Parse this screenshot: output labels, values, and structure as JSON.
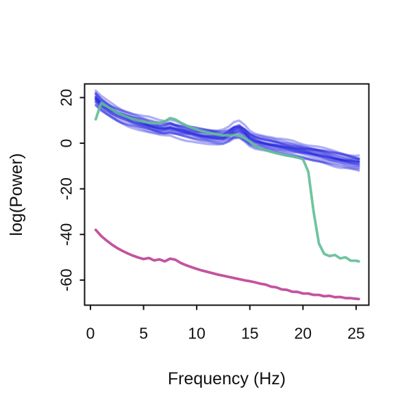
{
  "figure": {
    "background": "#ffffff",
    "axis_color": "#111111"
  },
  "chart_data": {
    "type": "line",
    "title": "",
    "xlabel": "Frequency (Hz)",
    "ylabel": "log(Power)",
    "xlim": [
      -0.55,
      26.2
    ],
    "ylim": [
      -71,
      26
    ],
    "x_ticks": [
      0,
      5,
      10,
      15,
      20,
      25
    ],
    "y_ticks": [
      20,
      0,
      -20,
      -40,
      -60
    ],
    "grid": false,
    "legend": "none",
    "x": [
      0.5,
      1,
      1.5,
      2,
      2.5,
      3,
      3.5,
      4,
      4.5,
      5,
      5.5,
      6,
      6.5,
      7,
      7.5,
      8,
      8.5,
      9,
      9.5,
      10,
      10.5,
      11,
      11.5,
      12,
      12.5,
      13,
      13.5,
      14,
      14.5,
      15,
      15.5,
      16,
      16.5,
      17,
      17.5,
      18,
      18.5,
      19,
      19.5,
      20,
      20.5,
      21,
      21.5,
      22,
      22.5,
      23,
      23.5,
      24,
      24.5,
      25,
      25.25
    ],
    "series": [
      {
        "name": "blue-spectra-bundle",
        "role": "bundle",
        "color": "#2121DE",
        "opacity": 0.36,
        "line_width": 3.3,
        "base_values": [
          20.0,
          17.6,
          15.9,
          14.4,
          13.1,
          12.0,
          11.0,
          10.1,
          9.3,
          8.6,
          8.0,
          7.4,
          6.9,
          6.6,
          6.7,
          6.2,
          5.6,
          5.0,
          4.5,
          4.0,
          3.6,
          3.3,
          3.0,
          2.8,
          2.8,
          3.4,
          4.6,
          5.0,
          3.8,
          2.2,
          1.3,
          0.7,
          0.1,
          -0.4,
          -0.9,
          -1.4,
          -1.9,
          -2.4,
          -2.9,
          -3.4,
          -3.9,
          -4.4,
          -4.9,
          -5.4,
          -5.9,
          -6.4,
          -6.9,
          -7.4,
          -7.8,
          -8.2,
          -8.3
        ],
        "bump_profile": [
          0,
          0,
          0,
          0,
          0,
          0,
          0,
          0,
          0,
          0,
          0,
          0,
          0,
          0.2,
          0.55,
          0.3,
          0.1,
          0,
          0,
          0,
          0,
          0,
          0,
          0,
          0.2,
          0.7,
          1.3,
          1.6,
          1.0,
          0.35,
          0.1,
          0,
          0,
          0,
          0,
          0,
          0,
          0,
          0,
          0,
          0,
          0,
          0,
          0,
          0,
          0,
          0,
          0,
          0,
          0,
          0
        ],
        "wiggle_amplitude": 1.3,
        "members": [
          {
            "offset": -3.4,
            "bump_gain": 0.2,
            "seed": 11
          },
          {
            "offset": -2.7,
            "bump_gain": 1.3,
            "seed": 12
          },
          {
            "offset": -2.1,
            "bump_gain": 0.5,
            "seed": 13
          },
          {
            "offset": -1.6,
            "bump_gain": -0.2,
            "seed": 14
          },
          {
            "offset": -1.2,
            "bump_gain": 0.9,
            "seed": 15
          },
          {
            "offset": -0.9,
            "bump_gain": 0.1,
            "seed": 16
          },
          {
            "offset": -0.6,
            "bump_gain": 1.5,
            "seed": 17
          },
          {
            "offset": -0.35,
            "bump_gain": 0.7,
            "seed": 18
          },
          {
            "offset": -0.15,
            "bump_gain": 0.3,
            "seed": 19
          },
          {
            "offset": 0.05,
            "bump_gain": 1.1,
            "seed": 20
          },
          {
            "offset": 0.25,
            "bump_gain": 0.0,
            "seed": 21
          },
          {
            "offset": 0.5,
            "bump_gain": 0.8,
            "seed": 22
          },
          {
            "offset": 0.8,
            "bump_gain": 1.4,
            "seed": 23
          },
          {
            "offset": 1.1,
            "bump_gain": 0.4,
            "seed": 24
          },
          {
            "offset": 1.45,
            "bump_gain": 1.0,
            "seed": 25
          },
          {
            "offset": 1.85,
            "bump_gain": 0.2,
            "seed": 26
          },
          {
            "offset": 2.3,
            "bump_gain": 0.6,
            "seed": 27
          },
          {
            "offset": 2.9,
            "bump_gain": 1.2,
            "seed": 28
          }
        ]
      },
      {
        "name": "green-spectrum",
        "role": "single",
        "color": "#60BE96",
        "opacity": 0.9,
        "line_width": 3.8,
        "values": [
          10.5,
          17.5,
          16.2,
          14.8,
          13.5,
          12.4,
          11.5,
          10.7,
          10.0,
          9.4,
          9.0,
          8.7,
          8.9,
          9.6,
          11.0,
          10.4,
          9.0,
          7.8,
          6.8,
          6.0,
          5.3,
          4.7,
          4.2,
          3.8,
          3.5,
          3.4,
          3.6,
          3.2,
          2.2,
          0.8,
          -1.2,
          -2.2,
          -3.1,
          -3.8,
          -4.4,
          -4.9,
          -5.4,
          -5.8,
          -6.3,
          -7.0,
          -12.5,
          -30.0,
          -44.0,
          -48.5,
          -49.5,
          -49.0,
          -50.5,
          -50.0,
          -51.5,
          -51.5,
          -51.8
        ]
      },
      {
        "name": "magenta-spectrum",
        "role": "single",
        "color": "#C3539F",
        "opacity": 1,
        "line_width": 3.8,
        "values": [
          -38.0,
          -40.6,
          -42.6,
          -44.4,
          -45.9,
          -47.2,
          -48.3,
          -49.3,
          -50.1,
          -50.8,
          -50.3,
          -51.4,
          -50.9,
          -51.8,
          -50.6,
          -51.1,
          -52.5,
          -53.5,
          -54.3,
          -55.1,
          -55.8,
          -56.4,
          -57.0,
          -57.6,
          -58.1,
          -58.6,
          -59.1,
          -59.6,
          -60.1,
          -60.5,
          -61.0,
          -61.6,
          -62.0,
          -62.9,
          -63.2,
          -64.1,
          -64.3,
          -65.1,
          -65.2,
          -65.9,
          -65.9,
          -66.5,
          -66.5,
          -67.1,
          -66.9,
          -67.5,
          -67.4,
          -67.9,
          -67.9,
          -68.2,
          -68.3
        ]
      }
    ]
  }
}
